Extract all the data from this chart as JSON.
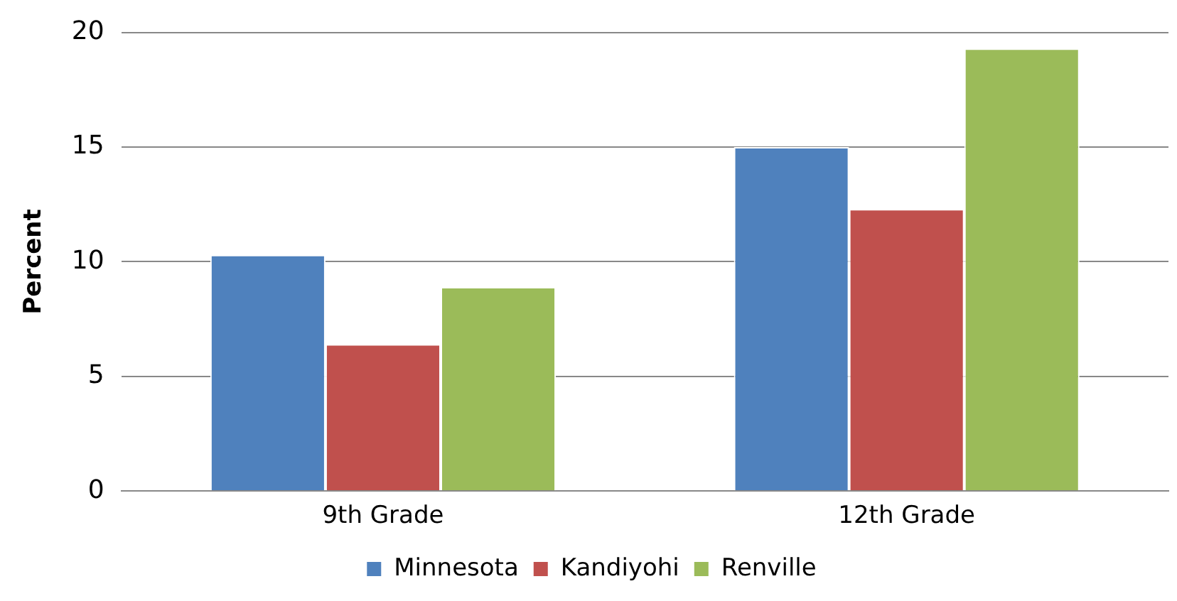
{
  "chart_data": {
    "type": "bar",
    "ylabel": "Percent",
    "categories": [
      "9th Grade",
      "12th Grade"
    ],
    "series": [
      {
        "name": "Minnesota",
        "color": "#4f81bd",
        "values": [
          10.3,
          15.0
        ]
      },
      {
        "name": "Kandiyohi",
        "color": "#c0504d",
        "values": [
          6.4,
          12.3
        ]
      },
      {
        "name": "Renville",
        "color": "#9bbb59",
        "values": [
          8.9,
          19.3
        ]
      }
    ],
    "ylim": [
      0,
      20
    ],
    "yticks": [
      0,
      5,
      10,
      15,
      20
    ],
    "grid": "y",
    "legend": "bottom"
  }
}
